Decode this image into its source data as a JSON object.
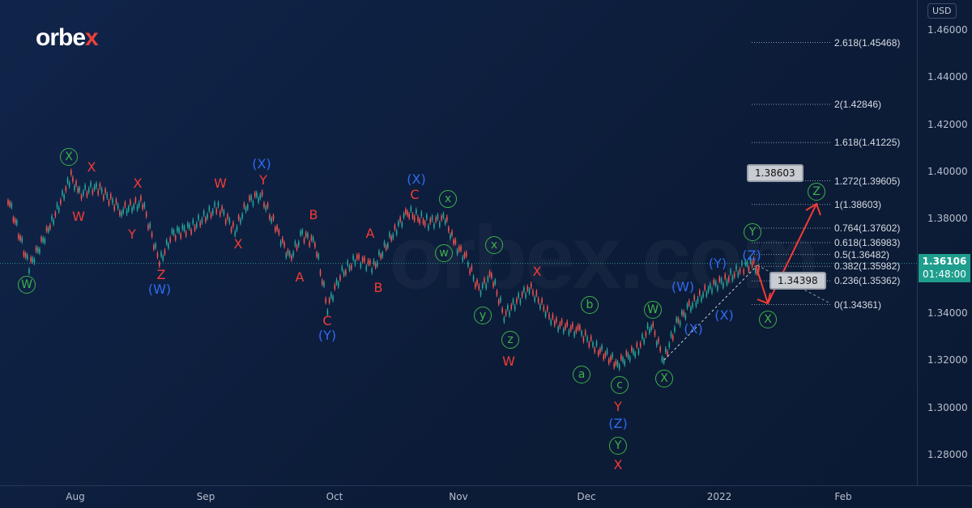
{
  "logo": "orbex",
  "watermark": "orbex.com",
  "currency": "USD",
  "current_price": {
    "value": "1.36106",
    "countdown": "01:48:00",
    "color": "#1f9e8e"
  },
  "colors": {
    "background": "#0d1e3b",
    "up": "#26a69a",
    "down": "#ef5350",
    "wave_red": "#f23b35",
    "wave_blue": "#2f6bf0",
    "wave_green": "#3fb24a"
  },
  "chart_data": {
    "type": "line",
    "ylim": [
      1.27,
      1.465
    ],
    "y_ticks": [
      "1.46000",
      "1.44000",
      "1.42000",
      "1.40000",
      "1.38000",
      "1.36000",
      "1.34000",
      "1.32000",
      "1.30000",
      "1.28000"
    ],
    "x_ticks": [
      "Aug",
      "Sep",
      "Oct",
      "Nov",
      "Dec",
      "2022",
      "Feb"
    ],
    "grid": false,
    "series": [
      {
        "x": [
          "2021-07-16",
          "2021-07-21",
          "2021-07-26",
          "2021-07-31",
          "2021-08-02",
          "2021-08-06",
          "2021-08-12",
          "2021-08-17",
          "2021-08-21",
          "2021-08-24",
          "2021-08-29",
          "2021-09-04",
          "2021-09-08",
          "2021-09-11",
          "2021-09-14",
          "2021-09-18",
          "2021-09-21",
          "2021-09-24",
          "2021-09-27",
          "2021-09-30",
          "2021-10-03",
          "2021-10-07",
          "2021-10-11",
          "2021-10-16",
          "2021-10-19",
          "2021-10-24",
          "2021-10-28",
          "2021-10-30",
          "2021-11-02",
          "2021-11-05",
          "2021-11-08",
          "2021-11-11",
          "2021-11-17",
          "2021-11-23",
          "2021-11-29",
          "2021-12-03",
          "2021-12-08",
          "2021-12-13",
          "2021-12-16",
          "2021-12-19",
          "2021-12-22",
          "2021-12-25",
          "2021-12-30",
          "2022-01-03",
          "2022-01-07",
          "2022-01-09",
          "2022-01-11"
        ],
        "y": [
          1.3887,
          1.3596,
          1.3767,
          1.3979,
          1.3904,
          1.3938,
          1.3835,
          1.387,
          1.3613,
          1.3733,
          1.3767,
          1.3853,
          1.375,
          1.387,
          1.3904,
          1.375,
          1.363,
          1.3733,
          1.3698,
          1.3424,
          1.3561,
          1.363,
          1.3596,
          1.375,
          1.3829,
          1.3784,
          1.3801,
          1.3698,
          1.363,
          1.3493,
          1.3561,
          1.339,
          1.351,
          1.3356,
          1.3321,
          1.3253,
          1.3184,
          1.3253,
          1.3356,
          1.3201,
          1.3356,
          1.3424,
          1.351,
          1.3544,
          1.3596,
          1.3613,
          1.3561
        ]
      }
    ],
    "fibonacci": [
      {
        "label": "2.618(1.45468)",
        "price": 1.45468
      },
      {
        "label": "2(1.42846)",
        "price": 1.42846
      },
      {
        "label": "1.618(1.41225)",
        "price": 1.41225
      },
      {
        "label": "1.272(1.39605)",
        "price": 1.39605
      },
      {
        "label": "1(1.38603)",
        "price": 1.38603
      },
      {
        "label": "0.764(1.37602)",
        "price": 1.37602
      },
      {
        "label": "0.618(1.36983)",
        "price": 1.36983
      },
      {
        "label": "0.5(1.36482)",
        "price": 1.36482
      },
      {
        "label": "0.382(1.35982)",
        "price": 1.35982
      },
      {
        "label": "0.236(1.35362)",
        "price": 1.35362
      },
      {
        "label": "0(1.34361)",
        "price": 1.34361
      }
    ],
    "callouts": [
      "1.38603",
      "1.34398"
    ],
    "wave_labels": [
      {
        "t": "W",
        "s": "circle",
        "c": "green"
      },
      {
        "t": "X",
        "s": "circle",
        "c": "green"
      },
      {
        "t": "X",
        "s": "plain",
        "c": "red"
      },
      {
        "t": "W",
        "s": "plain",
        "c": "red"
      },
      {
        "t": "X",
        "s": "plain",
        "c": "red"
      },
      {
        "t": "Y",
        "s": "plain",
        "c": "red"
      },
      {
        "t": "Z",
        "s": "plain",
        "c": "red"
      },
      {
        "t": "(W)",
        "s": "plain",
        "c": "blue"
      },
      {
        "t": "W",
        "s": "plain",
        "c": "red"
      },
      {
        "t": "X",
        "s": "plain",
        "c": "red"
      },
      {
        "t": "(X)",
        "s": "plain",
        "c": "blue"
      },
      {
        "t": "Y",
        "s": "plain",
        "c": "red"
      },
      {
        "t": "B",
        "s": "plain",
        "c": "red"
      },
      {
        "t": "A",
        "s": "plain",
        "c": "red"
      },
      {
        "t": "C",
        "s": "plain",
        "c": "red"
      },
      {
        "t": "(Y)",
        "s": "plain",
        "c": "blue"
      },
      {
        "t": "A",
        "s": "plain",
        "c": "red"
      },
      {
        "t": "B",
        "s": "plain",
        "c": "red"
      },
      {
        "t": "(X)",
        "s": "plain",
        "c": "blue"
      },
      {
        "t": "C",
        "s": "plain",
        "c": "red"
      },
      {
        "t": "x",
        "s": "circle",
        "c": "green"
      },
      {
        "t": "w",
        "s": "circle",
        "c": "green"
      },
      {
        "t": "x",
        "s": "circle",
        "c": "green"
      },
      {
        "t": "y",
        "s": "circle",
        "c": "green"
      },
      {
        "t": "z",
        "s": "circle",
        "c": "green"
      },
      {
        "t": "W",
        "s": "plain",
        "c": "red"
      },
      {
        "t": "X",
        "s": "plain",
        "c": "red"
      },
      {
        "t": "b",
        "s": "circle",
        "c": "green"
      },
      {
        "t": "a",
        "s": "circle",
        "c": "green"
      },
      {
        "t": "c",
        "s": "circle",
        "c": "green"
      },
      {
        "t": "Y",
        "s": "plain",
        "c": "red"
      },
      {
        "t": "(Z)",
        "s": "plain",
        "c": "blue"
      },
      {
        "t": "Y",
        "s": "circle",
        "c": "green"
      },
      {
        "t": "X",
        "s": "plain",
        "c": "red"
      },
      {
        "t": "W",
        "s": "circle",
        "c": "green"
      },
      {
        "t": "X",
        "s": "circle",
        "c": "green"
      },
      {
        "t": "(W)",
        "s": "plain",
        "c": "blue"
      },
      {
        "t": "(X)",
        "s": "plain",
        "c": "blue"
      },
      {
        "t": "(Y)",
        "s": "plain",
        "c": "blue"
      },
      {
        "t": "(X)",
        "s": "plain",
        "c": "blue"
      },
      {
        "t": "(Z)",
        "s": "plain",
        "c": "blue"
      },
      {
        "t": "Y",
        "s": "circle",
        "c": "green"
      },
      {
        "t": "X",
        "s": "circle",
        "c": "green"
      },
      {
        "t": "Z",
        "s": "circle",
        "c": "green"
      }
    ]
  }
}
